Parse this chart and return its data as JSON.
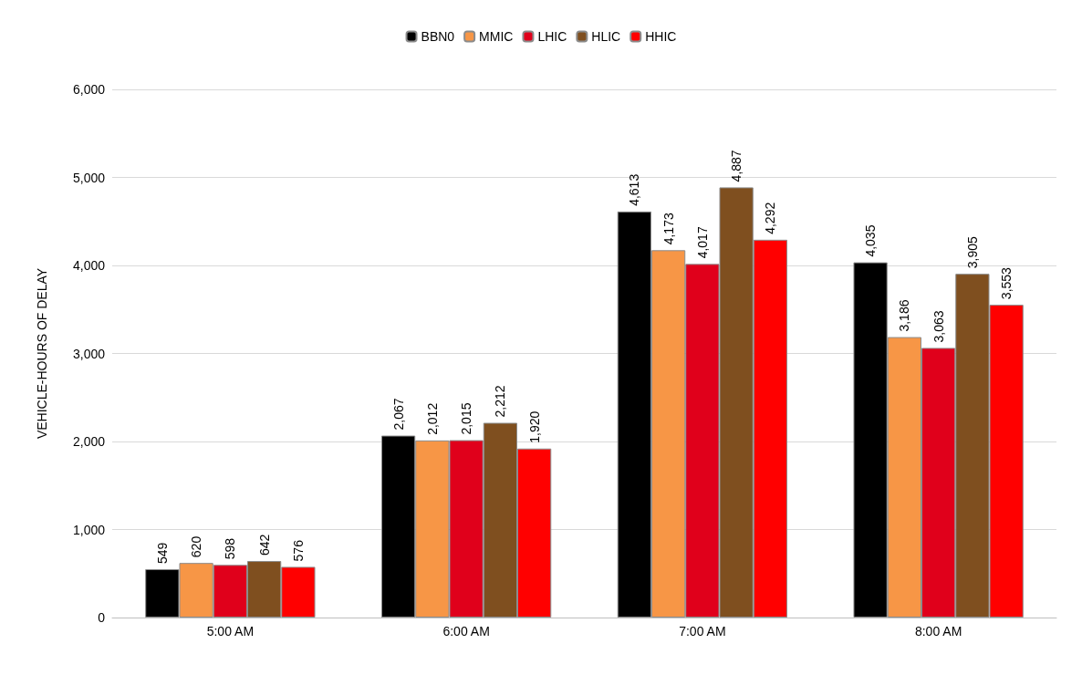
{
  "chart_data": {
    "type": "bar",
    "ylabel": "VEHICLE-HOURS OF DELAY",
    "categories": [
      "5:00 AM",
      "6:00 AM",
      "7:00 AM",
      "8:00 AM"
    ],
    "series": [
      {
        "name": "BBN0",
        "color": "#000000",
        "values": [
          549,
          2067,
          4613,
          4035
        ],
        "value_labels": [
          "549",
          "2,067",
          "4,613",
          "4,035"
        ]
      },
      {
        "name": "MMIC",
        "color": "#f79646",
        "values": [
          620,
          2012,
          4173,
          3186
        ],
        "value_labels": [
          "620",
          "2,012",
          "4,173",
          "3,186"
        ]
      },
      {
        "name": "LHIC",
        "color": "#e0001b",
        "values": [
          598,
          2015,
          4017,
          3063
        ],
        "value_labels": [
          "598",
          "2,015",
          "4,017",
          "3,063"
        ]
      },
      {
        "name": "HLIC",
        "color": "#7f4f1f",
        "values": [
          642,
          2212,
          4887,
          3905
        ],
        "value_labels": [
          "642",
          "2,212",
          "4,887",
          "3,905"
        ]
      },
      {
        "name": "HHIC",
        "color": "#ff0000",
        "values": [
          576,
          1920,
          4292,
          3553
        ],
        "value_labels": [
          "576",
          "1,920",
          "4,292",
          "3,553"
        ]
      }
    ],
    "ylim": [
      0,
      6000
    ],
    "yticks": [
      {
        "value": 0,
        "label": "0"
      },
      {
        "value": 1000,
        "label": "1,000"
      },
      {
        "value": 2000,
        "label": "2,000"
      },
      {
        "value": 3000,
        "label": "3,000"
      },
      {
        "value": 4000,
        "label": "4,000"
      },
      {
        "value": 5000,
        "label": "5,000"
      },
      {
        "value": 6000,
        "label": "6,000"
      }
    ],
    "grid": "y",
    "legend": "top"
  }
}
